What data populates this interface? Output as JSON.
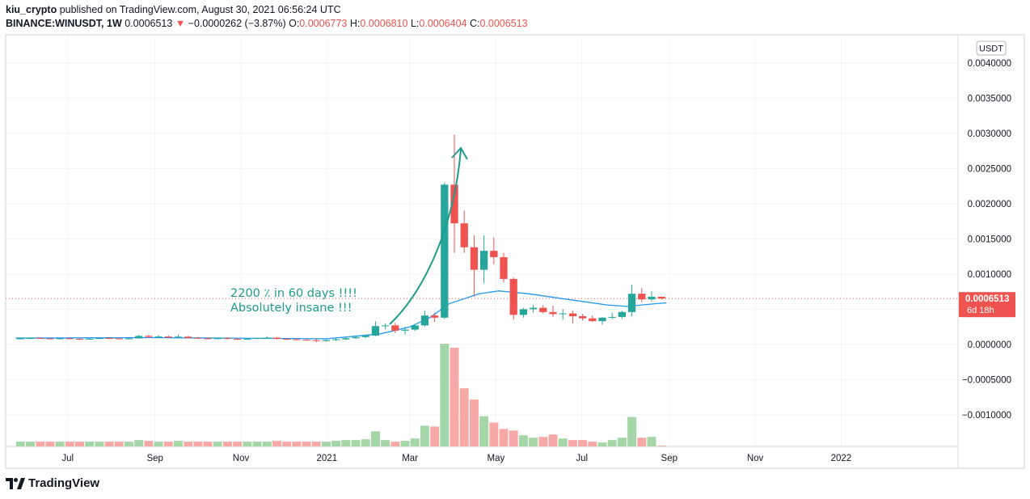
{
  "header": {
    "author": "kiu_crypto",
    "published_text": "published on TradingView.com, August 30, 2021 06:56:24 UTC",
    "symbol": "BINANCE:WINUSDT, 1W",
    "last": "0.0006513",
    "change": "−0.0000262 (−3.87%)",
    "open_label": "O:",
    "open": "0.0006773",
    "high_label": "H:",
    "high": "0.0006810",
    "low_label": "L:",
    "low": "0.0006404",
    "close_label": "C:",
    "close": "0.0006513"
  },
  "currency_button": "USDT",
  "price_tag": {
    "value": "0.0006513",
    "countdown": "6d 18h"
  },
  "annotation": {
    "line1": "2200 ٪ in 60 days !!!!",
    "line2": "Absolutely insane !!!"
  },
  "footer": {
    "brand": "TradingView"
  },
  "colors": {
    "up": "#26a69a",
    "down": "#ef5350",
    "up_volume": "#a5d6a7",
    "down_volume": "#f7a9a7",
    "ma": "#2196f3",
    "annotation": "#1e9c8a"
  },
  "chart_data": {
    "type": "candlestick",
    "interval": "1W",
    "y_ticks": [
      0.004,
      0.0035,
      0.003,
      0.0025,
      0.002,
      0.0015,
      0.001,
      0.0005,
      0.0,
      -0.0005,
      -0.001
    ],
    "y_tick_labels": [
      "0.0040000",
      "0.0035000",
      "0.0030000",
      "0.0025000",
      "0.0020000",
      "0.0015000",
      "0.0010000",
      "0.0005000",
      "0.0000000",
      "−0.0005000",
      "−0.0010000"
    ],
    "ylim": [
      -0.00145,
      0.0044
    ],
    "x_labels": [
      {
        "label": "Jul",
        "date": "2020-07-01"
      },
      {
        "label": "Sep",
        "date": "2020-09-01"
      },
      {
        "label": "Nov",
        "date": "2020-11-01"
      },
      {
        "label": "2021",
        "date": "2021-01-01"
      },
      {
        "label": "Mar",
        "date": "2021-03-01"
      },
      {
        "label": "May",
        "date": "2021-05-01"
      },
      {
        "label": "Jul",
        "date": "2021-07-01"
      },
      {
        "label": "Sep",
        "date": "2021-09-01"
      },
      {
        "label": "Nov",
        "date": "2021-11-01"
      },
      {
        "label": "2022",
        "date": "2022-01-01"
      }
    ],
    "xlim": [
      "2020-05-18",
      "2022-03-25"
    ],
    "candles": [
      {
        "date": "2020-05-25",
        "o": 8e-05,
        "h": 9.5e-05,
        "l": 6.8e-05,
        "c": 8.5e-05,
        "v": 6
      },
      {
        "date": "2020-06-01",
        "o": 8.5e-05,
        "h": 0.0001,
        "l": 7.5e-05,
        "c": 9e-05,
        "v": 6
      },
      {
        "date": "2020-06-08",
        "o": 9e-05,
        "h": 9.8e-05,
        "l": 7.8e-05,
        "c": 8.4e-05,
        "v": 6
      },
      {
        "date": "2020-06-15",
        "o": 8.4e-05,
        "h": 9.2e-05,
        "l": 7.4e-05,
        "c": 8e-05,
        "v": 6
      },
      {
        "date": "2020-06-22",
        "o": 8e-05,
        "h": 9.5e-05,
        "l": 7e-05,
        "c": 8.6e-05,
        "v": 6
      },
      {
        "date": "2020-06-29",
        "o": 8.6e-05,
        "h": 9.6e-05,
        "l": 7.4e-05,
        "c": 7.8e-05,
        "v": 6
      },
      {
        "date": "2020-07-06",
        "o": 7.8e-05,
        "h": 9e-05,
        "l": 6.6e-05,
        "c": 7e-05,
        "v": 6
      },
      {
        "date": "2020-07-13",
        "o": 7e-05,
        "h": 8.5e-05,
        "l": 6.4e-05,
        "c": 8e-05,
        "v": 6
      },
      {
        "date": "2020-07-20",
        "o": 8e-05,
        "h": 9.8e-05,
        "l": 7.4e-05,
        "c": 9e-05,
        "v": 6
      },
      {
        "date": "2020-07-27",
        "o": 9e-05,
        "h": 0.000102,
        "l": 7.8e-05,
        "c": 8.4e-05,
        "v": 6
      },
      {
        "date": "2020-08-03",
        "o": 8.4e-05,
        "h": 9.5e-05,
        "l": 7.4e-05,
        "c": 8e-05,
        "v": 6
      },
      {
        "date": "2020-08-10",
        "o": 8e-05,
        "h": 9e-05,
        "l": 7.2e-05,
        "c": 8.5e-05,
        "v": 6
      },
      {
        "date": "2020-08-17",
        "o": 8.5e-05,
        "h": 0.000135,
        "l": 8e-05,
        "c": 0.00012,
        "v": 8
      },
      {
        "date": "2020-08-24",
        "o": 0.00012,
        "h": 0.00014,
        "l": 9e-05,
        "c": 0.000105,
        "v": 7
      },
      {
        "date": "2020-08-31",
        "o": 0.000105,
        "h": 0.000135,
        "l": 9.2e-05,
        "c": 0.000112,
        "v": 6
      },
      {
        "date": "2020-09-07",
        "o": 0.000112,
        "h": 0.000128,
        "l": 9e-05,
        "c": 9.8e-05,
        "v": 6
      },
      {
        "date": "2020-09-14",
        "o": 9.8e-05,
        "h": 0.00014,
        "l": 8.8e-05,
        "c": 0.00011,
        "v": 7
      },
      {
        "date": "2020-09-21",
        "o": 0.00011,
        "h": 0.00012,
        "l": 8.5e-05,
        "c": 9.2e-05,
        "v": 6
      },
      {
        "date": "2020-09-28",
        "o": 9.2e-05,
        "h": 0.000106,
        "l": 8e-05,
        "c": 8.6e-05,
        "v": 6
      },
      {
        "date": "2020-10-05",
        "o": 8.6e-05,
        "h": 0.0001,
        "l": 7.2e-05,
        "c": 8e-05,
        "v": 6
      },
      {
        "date": "2020-10-12",
        "o": 8e-05,
        "h": 9.6e-05,
        "l": 7e-05,
        "c": 8.8e-05,
        "v": 6
      },
      {
        "date": "2020-10-19",
        "o": 8.8e-05,
        "h": 0.000102,
        "l": 7.2e-05,
        "c": 7.8e-05,
        "v": 6
      },
      {
        "date": "2020-10-26",
        "o": 7.8e-05,
        "h": 9e-05,
        "l": 6.4e-05,
        "c": 7e-05,
        "v": 6
      },
      {
        "date": "2020-11-02",
        "o": 7e-05,
        "h": 8.6e-05,
        "l": 6.2e-05,
        "c": 8e-05,
        "v": 6
      },
      {
        "date": "2020-11-09",
        "o": 8e-05,
        "h": 9.6e-05,
        "l": 7.2e-05,
        "c": 9e-05,
        "v": 6
      },
      {
        "date": "2020-11-16",
        "o": 9e-05,
        "h": 0.000115,
        "l": 8e-05,
        "c": 9.6e-05,
        "v": 6
      },
      {
        "date": "2020-11-23",
        "o": 9.6e-05,
        "h": 0.000106,
        "l": 7.2e-05,
        "c": 7.8e-05,
        "v": 7
      },
      {
        "date": "2020-11-30",
        "o": 7.8e-05,
        "h": 9e-05,
        "l": 6.4e-05,
        "c": 7.2e-05,
        "v": 6
      },
      {
        "date": "2020-12-07",
        "o": 7.2e-05,
        "h": 8.6e-05,
        "l": 6e-05,
        "c": 6.6e-05,
        "v": 6
      },
      {
        "date": "2020-12-14",
        "o": 6.6e-05,
        "h": 8e-05,
        "l": 5.5e-05,
        "c": 6e-05,
        "v": 6
      },
      {
        "date": "2020-12-21",
        "o": 6e-05,
        "h": 7.4e-05,
        "l": 3e-05,
        "c": 4.8e-05,
        "v": 6
      },
      {
        "date": "2020-12-28",
        "o": 4.8e-05,
        "h": 7e-05,
        "l": 4e-05,
        "c": 6.2e-05,
        "v": 6
      },
      {
        "date": "2021-01-04",
        "o": 6.2e-05,
        "h": 8.6e-05,
        "l": 5e-05,
        "c": 7.2e-05,
        "v": 7
      },
      {
        "date": "2021-01-11",
        "o": 7.2e-05,
        "h": 9.8e-05,
        "l": 6.2e-05,
        "c": 8.8e-05,
        "v": 8
      },
      {
        "date": "2021-01-18",
        "o": 8.8e-05,
        "h": 0.000115,
        "l": 7.8e-05,
        "c": 0.000104,
        "v": 8
      },
      {
        "date": "2021-01-25",
        "o": 0.000104,
        "h": 0.00014,
        "l": 9e-05,
        "c": 0.000125,
        "v": 9
      },
      {
        "date": "2021-02-01",
        "o": 0.000125,
        "h": 0.00033,
        "l": 0.000115,
        "c": 0.00026,
        "v": 19
      },
      {
        "date": "2021-02-08",
        "o": 0.00026,
        "h": 0.0003,
        "l": 0.000215,
        "c": 0.00027,
        "v": 8
      },
      {
        "date": "2021-02-15",
        "o": 0.00027,
        "h": 0.000305,
        "l": 0.00016,
        "c": 0.000195,
        "v": 6
      },
      {
        "date": "2021-02-22",
        "o": 0.000195,
        "h": 0.00025,
        "l": 0.00014,
        "c": 0.00021,
        "v": 7
      },
      {
        "date": "2021-03-01",
        "o": 0.00021,
        "h": 0.00029,
        "l": 0.00019,
        "c": 0.00027,
        "v": 10
      },
      {
        "date": "2021-03-08",
        "o": 0.00027,
        "h": 0.00048,
        "l": 0.00025,
        "c": 0.00041,
        "v": 26
      },
      {
        "date": "2021-03-15",
        "o": 0.00041,
        "h": 0.00045,
        "l": 0.00032,
        "c": 0.00038,
        "v": 25
      },
      {
        "date": "2021-03-22",
        "o": 0.00038,
        "h": 0.0023,
        "l": 0.00036,
        "c": 0.00227,
        "v": 129
      },
      {
        "date": "2021-03-29",
        "o": 0.00227,
        "h": 0.00298,
        "l": 0.0013,
        "c": 0.00172,
        "v": 124
      },
      {
        "date": "2021-04-05",
        "o": 0.00172,
        "h": 0.0019,
        "l": 0.0013,
        "c": 0.00138,
        "v": 73
      },
      {
        "date": "2021-04-12",
        "o": 0.00138,
        "h": 0.00155,
        "l": 0.00068,
        "c": 0.00106,
        "v": 59
      },
      {
        "date": "2021-04-19",
        "o": 0.00106,
        "h": 0.00155,
        "l": 0.00087,
        "c": 0.00133,
        "v": 38
      },
      {
        "date": "2021-04-26",
        "o": 0.00133,
        "h": 0.00152,
        "l": 0.00114,
        "c": 0.00124,
        "v": 30
      },
      {
        "date": "2021-05-03",
        "o": 0.00124,
        "h": 0.0013,
        "l": 0.00088,
        "c": 0.00093,
        "v": 22
      },
      {
        "date": "2021-05-10",
        "o": 0.00093,
        "h": 0.00095,
        "l": 0.00035,
        "c": 0.00042,
        "v": 20
      },
      {
        "date": "2021-05-17",
        "o": 0.00042,
        "h": 0.00052,
        "l": 0.00038,
        "c": 0.0005,
        "v": 14
      },
      {
        "date": "2021-05-24",
        "o": 0.0005,
        "h": 0.00056,
        "l": 0.00045,
        "c": 0.00052,
        "v": 11
      },
      {
        "date": "2021-05-31",
        "o": 0.00052,
        "h": 0.00056,
        "l": 0.00044,
        "c": 0.00046,
        "v": 12
      },
      {
        "date": "2021-06-07",
        "o": 0.00046,
        "h": 0.00055,
        "l": 0.00039,
        "c": 0.00043,
        "v": 15
      },
      {
        "date": "2021-06-14",
        "o": 0.00043,
        "h": 0.0005,
        "l": 0.00035,
        "c": 0.00044,
        "v": 10
      },
      {
        "date": "2021-06-21",
        "o": 0.00044,
        "h": 0.00048,
        "l": 0.0003,
        "c": 0.0004,
        "v": 8
      },
      {
        "date": "2021-06-28",
        "o": 0.0004,
        "h": 0.00043,
        "l": 0.00034,
        "c": 0.00037,
        "v": 8
      },
      {
        "date": "2021-07-05",
        "o": 0.00037,
        "h": 0.00041,
        "l": 0.00032,
        "c": 0.00033,
        "v": 6
      },
      {
        "date": "2021-07-12",
        "o": 0.00033,
        "h": 0.00039,
        "l": 0.00028,
        "c": 0.00038,
        "v": 5
      },
      {
        "date": "2021-07-19",
        "o": 0.00038,
        "h": 0.00045,
        "l": 0.00036,
        "c": 0.00039,
        "v": 8
      },
      {
        "date": "2021-07-26",
        "o": 0.00039,
        "h": 0.00048,
        "l": 0.00036,
        "c": 0.00046,
        "v": 11
      },
      {
        "date": "2021-08-02",
        "o": 0.00046,
        "h": 0.00085,
        "l": 0.0004,
        "c": 0.00072,
        "v": 37
      },
      {
        "date": "2021-08-09",
        "o": 0.00072,
        "h": 0.0008,
        "l": 0.0006,
        "c": 0.00064,
        "v": 11
      },
      {
        "date": "2021-08-16",
        "o": 0.00064,
        "h": 0.00076,
        "l": 0.00061,
        "c": 0.000677,
        "v": 12
      },
      {
        "date": "2021-08-23",
        "o": 0.000677,
        "h": 0.000681,
        "l": 0.00064,
        "c": 0.000651,
        "v": 1
      }
    ],
    "moving_average": [
      {
        "date": "2020-05-25",
        "v": 9e-05
      },
      {
        "date": "2020-09-01",
        "v": 9.6e-05
      },
      {
        "date": "2021-01-01",
        "v": 8e-05
      },
      {
        "date": "2021-02-08",
        "v": 0.00015
      },
      {
        "date": "2021-03-01",
        "v": 0.00025
      },
      {
        "date": "2021-03-15",
        "v": 0.00038
      },
      {
        "date": "2021-03-29",
        "v": 0.00058
      },
      {
        "date": "2021-04-19",
        "v": 0.00072
      },
      {
        "date": "2021-05-03",
        "v": 0.00076
      },
      {
        "date": "2021-05-24",
        "v": 0.00072
      },
      {
        "date": "2021-06-21",
        "v": 0.00064
      },
      {
        "date": "2021-07-19",
        "v": 0.00056
      },
      {
        "date": "2021-08-02",
        "v": 0.00054
      },
      {
        "date": "2021-08-23",
        "v": 0.00058
      },
      {
        "date": "2021-08-30",
        "v": 0.00059
      }
    ]
  }
}
